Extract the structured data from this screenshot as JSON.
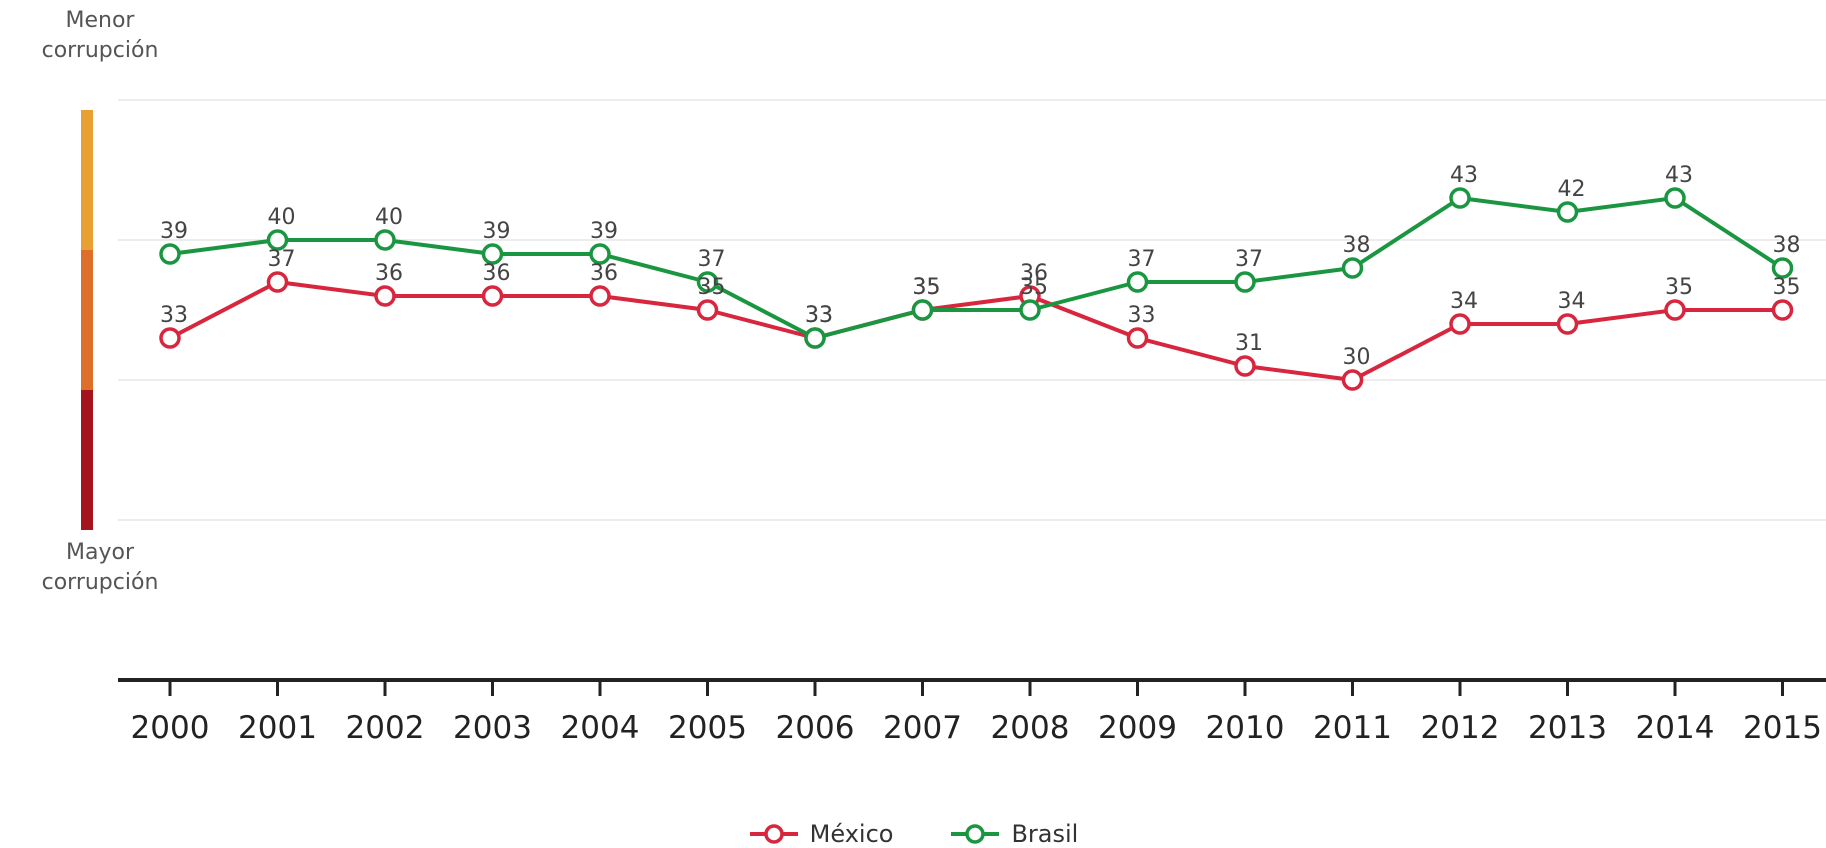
{
  "top_label": {
    "line1": "Menor",
    "line2": "corrupción"
  },
  "bottom_label": {
    "line1": "Mayor",
    "line2": "corrupción"
  },
  "chart_data": {
    "type": "line",
    "x": [
      "2000",
      "2001",
      "2002",
      "2003",
      "2004",
      "2005",
      "2006",
      "2007",
      "2008",
      "2009",
      "2010",
      "2011",
      "2012",
      "2013",
      "2014",
      "2015"
    ],
    "ylim": [
      20,
      50
    ],
    "grid": true,
    "legend_position": "bottom-center",
    "series": [
      {
        "name": "México",
        "color": "#d7263d",
        "values": [
          33,
          37,
          36,
          36,
          36,
          35,
          33,
          35,
          36,
          33,
          31,
          30,
          34,
          34,
          35,
          35
        ]
      },
      {
        "name": "Brasil",
        "color": "#1a9641",
        "values": [
          39,
          40,
          40,
          39,
          39,
          37,
          33,
          35,
          35,
          37,
          37,
          38,
          43,
          42,
          43,
          38
        ]
      }
    ],
    "scale_bar_colors": [
      "#e8a033",
      "#de6f2b",
      "#a3141c"
    ]
  }
}
